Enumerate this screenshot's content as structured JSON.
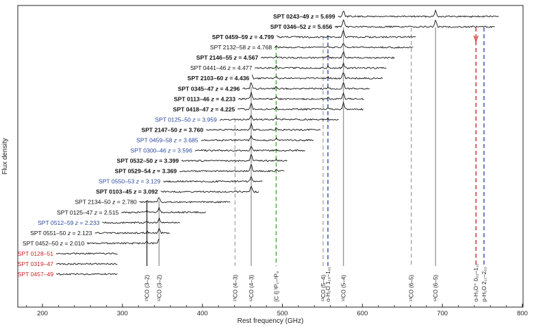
{
  "chart_data": {
    "type": "line",
    "xlabel": "Rest frequency (GHz)",
    "ylabel": "Flux density",
    "xlim": [
      150,
      800
    ],
    "xticks": [
      200,
      300,
      400,
      500,
      600,
      700,
      800
    ],
    "colors": {
      "black": "#111111",
      "blue": "#2c4a9e",
      "red": "#cc2222"
    },
    "series": [
      {
        "name": "SPT 0243–49",
        "z": "5.699",
        "z_value": 5.699,
        "color": "black",
        "bold": true
      },
      {
        "name": "SPT 0346–52",
        "z": "5.656",
        "z_value": 5.656,
        "color": "black",
        "bold": true
      },
      {
        "name": "SPT 0459–59",
        "z": "4.799",
        "z_value": 4.799,
        "color": "black",
        "bold": true
      },
      {
        "name": "SPT 2132–58",
        "z": "4.768",
        "z_value": 4.768,
        "color": "black",
        "bold": false
      },
      {
        "name": "SPT 2146–55",
        "z": "4.567",
        "z_value": 4.567,
        "color": "black",
        "bold": true
      },
      {
        "name": "SPT 0441–46",
        "z": "4.477",
        "z_value": 4.477,
        "color": "black",
        "bold": false
      },
      {
        "name": "SPT 2103–60",
        "z": "4.436",
        "z_value": 4.436,
        "color": "black",
        "bold": true
      },
      {
        "name": "SPT 0345–47",
        "z": "4.296",
        "z_value": 4.296,
        "color": "black",
        "bold": true
      },
      {
        "name": "SPT 0113–46",
        "z": "4.233",
        "z_value": 4.233,
        "color": "black",
        "bold": true
      },
      {
        "name": "SPT 0418–47",
        "z": "4.225",
        "z_value": 4.225,
        "color": "black",
        "bold": true
      },
      {
        "name": "SPT 0125–50",
        "z": "3.959",
        "z_value": 3.959,
        "color": "blue",
        "bold": false
      },
      {
        "name": "SPT 2147–50",
        "z": "3.760",
        "z_value": 3.76,
        "color": "black",
        "bold": true
      },
      {
        "name": "SPT 0459–58",
        "z": "3.685",
        "z_value": 3.685,
        "color": "blue",
        "bold": false
      },
      {
        "name": "SPT 0300–46",
        "z": "3.596",
        "z_value": 3.596,
        "color": "blue",
        "bold": false
      },
      {
        "name": "SPT 0532–50",
        "z": "3.399",
        "z_value": 3.399,
        "color": "black",
        "bold": true
      },
      {
        "name": "SPT 0529–54",
        "z": "3.369",
        "z_value": 3.369,
        "color": "black",
        "bold": true
      },
      {
        "name": "SPT 0550–53",
        "z": "3.129",
        "z_value": 3.129,
        "color": "blue",
        "bold": false
      },
      {
        "name": "SPT 0103–45",
        "z": "3.092",
        "z_value": 3.092,
        "color": "black",
        "bold": true
      },
      {
        "name": "SPT 2134–50",
        "z": "2.780",
        "z_value": 2.78,
        "color": "black",
        "bold": false
      },
      {
        "name": "SPT 0125–47",
        "z": "2.515",
        "z_value": 2.515,
        "color": "black",
        "bold": false
      },
      {
        "name": "SPT 0512–59",
        "z": "2.233",
        "z_value": 2.233,
        "color": "blue",
        "bold": false
      },
      {
        "name": "SPT 0551–50",
        "z": "2.123",
        "z_value": 2.123,
        "color": "black",
        "bold": false
      },
      {
        "name": "SPT 0452–50",
        "z": "2.010",
        "z_value": 2.01,
        "color": "black",
        "bold": false
      },
      {
        "name": "SPT 0128–51",
        "z": "",
        "z_value": null,
        "color": "red",
        "bold": false
      },
      {
        "name": "SPT 0319–47",
        "z": "",
        "z_value": null,
        "color": "red",
        "bold": false
      },
      {
        "name": "SPT 0457–49",
        "z": "",
        "z_value": null,
        "color": "red",
        "bold": false
      }
    ],
    "annotations": [
      {
        "text": "¹³CO (3–2)",
        "freq": 330.6,
        "color": "#333333",
        "dash": false
      },
      {
        "text": "¹²CO (3–2)",
        "freq": 345.8,
        "color": "#999999",
        "dash": false
      },
      {
        "text": "¹³CO (4–3)",
        "freq": 440.8,
        "color": "#aaaaaa",
        "dash": true
      },
      {
        "text": "¹²CO (4–3)",
        "freq": 461.0,
        "color": "#999999",
        "dash": false
      },
      {
        "text": "[C I] ³P₁–³P₀",
        "freq": 492.2,
        "color": "#44aa33",
        "dash": true
      },
      {
        "text": "¹³CO (5–4)",
        "freq": 550.9,
        "color": "#aaaaaa",
        "dash": true
      },
      {
        "text": "o-H₂O 1₁₀–1₀₁",
        "freq": 556.9,
        "color": "#3344bb",
        "dash": true
      },
      {
        "text": "¹²CO (5–4)",
        "freq": 576.3,
        "color": "#999999",
        "dash": false
      },
      {
        "text": "¹³CO (6–5)",
        "freq": 661.1,
        "color": "#aaaaaa",
        "dash": true
      },
      {
        "text": "¹²CO (6–5)",
        "freq": 691.5,
        "color": "#999999",
        "dash": false
      },
      {
        "text": "o-H₃O⁺ 0₀₂–1₁₁",
        "freq": 742.0,
        "color": "#cc2222",
        "dash": true
      },
      {
        "text": "p-H₂O 2₁₁–2₀₂",
        "freq": 752.0,
        "color": "#3344bb",
        "dash": true
      }
    ]
  }
}
